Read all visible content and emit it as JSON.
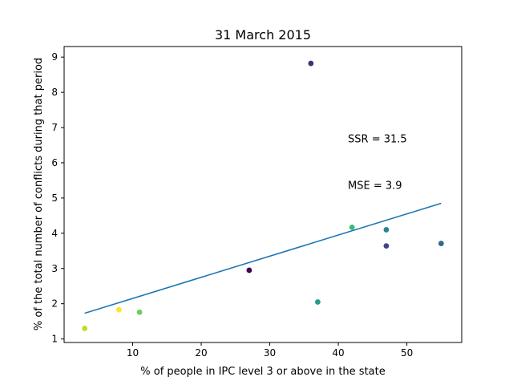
{
  "chart_data": {
    "type": "scatter",
    "title": "31 March 2015",
    "xlabel": "% of people in IPC level 3 or above in the state",
    "ylabel": "% of the total number of conflicts during that period",
    "xlim": [
      0,
      58
    ],
    "ylim": [
      0.9,
      9.3
    ],
    "x_ticks": [
      10,
      20,
      30,
      40,
      50
    ],
    "y_ticks": [
      1,
      2,
      3,
      4,
      5,
      6,
      7,
      8,
      9
    ],
    "grid": false,
    "points": [
      {
        "x": 36,
        "y": 8.82,
        "color": "#472d7b"
      },
      {
        "x": 42,
        "y": 4.17,
        "color": "#3aba76"
      },
      {
        "x": 47,
        "y": 4.1,
        "color": "#24868e"
      },
      {
        "x": 47,
        "y": 3.64,
        "color": "#414487"
      },
      {
        "x": 55,
        "y": 3.71,
        "color": "#31688e"
      },
      {
        "x": 27,
        "y": 2.95,
        "color": "#440154"
      },
      {
        "x": 37,
        "y": 2.05,
        "color": "#1f9e89"
      },
      {
        "x": 8,
        "y": 1.83,
        "color": "#fde725"
      },
      {
        "x": 11,
        "y": 1.76,
        "color": "#6ccd5a"
      },
      {
        "x": 3,
        "y": 1.3,
        "color": "#bddf26"
      }
    ],
    "fit_line": {
      "x": [
        3,
        55
      ],
      "y": [
        1.73,
        4.85
      ],
      "color": "#1f77b4"
    },
    "annotations": [
      {
        "text": "SSR = 31.5",
        "x": 41.4,
        "y": 6.58
      },
      {
        "text": "MSE = 3.9",
        "x": 41.4,
        "y": 5.26
      }
    ]
  }
}
